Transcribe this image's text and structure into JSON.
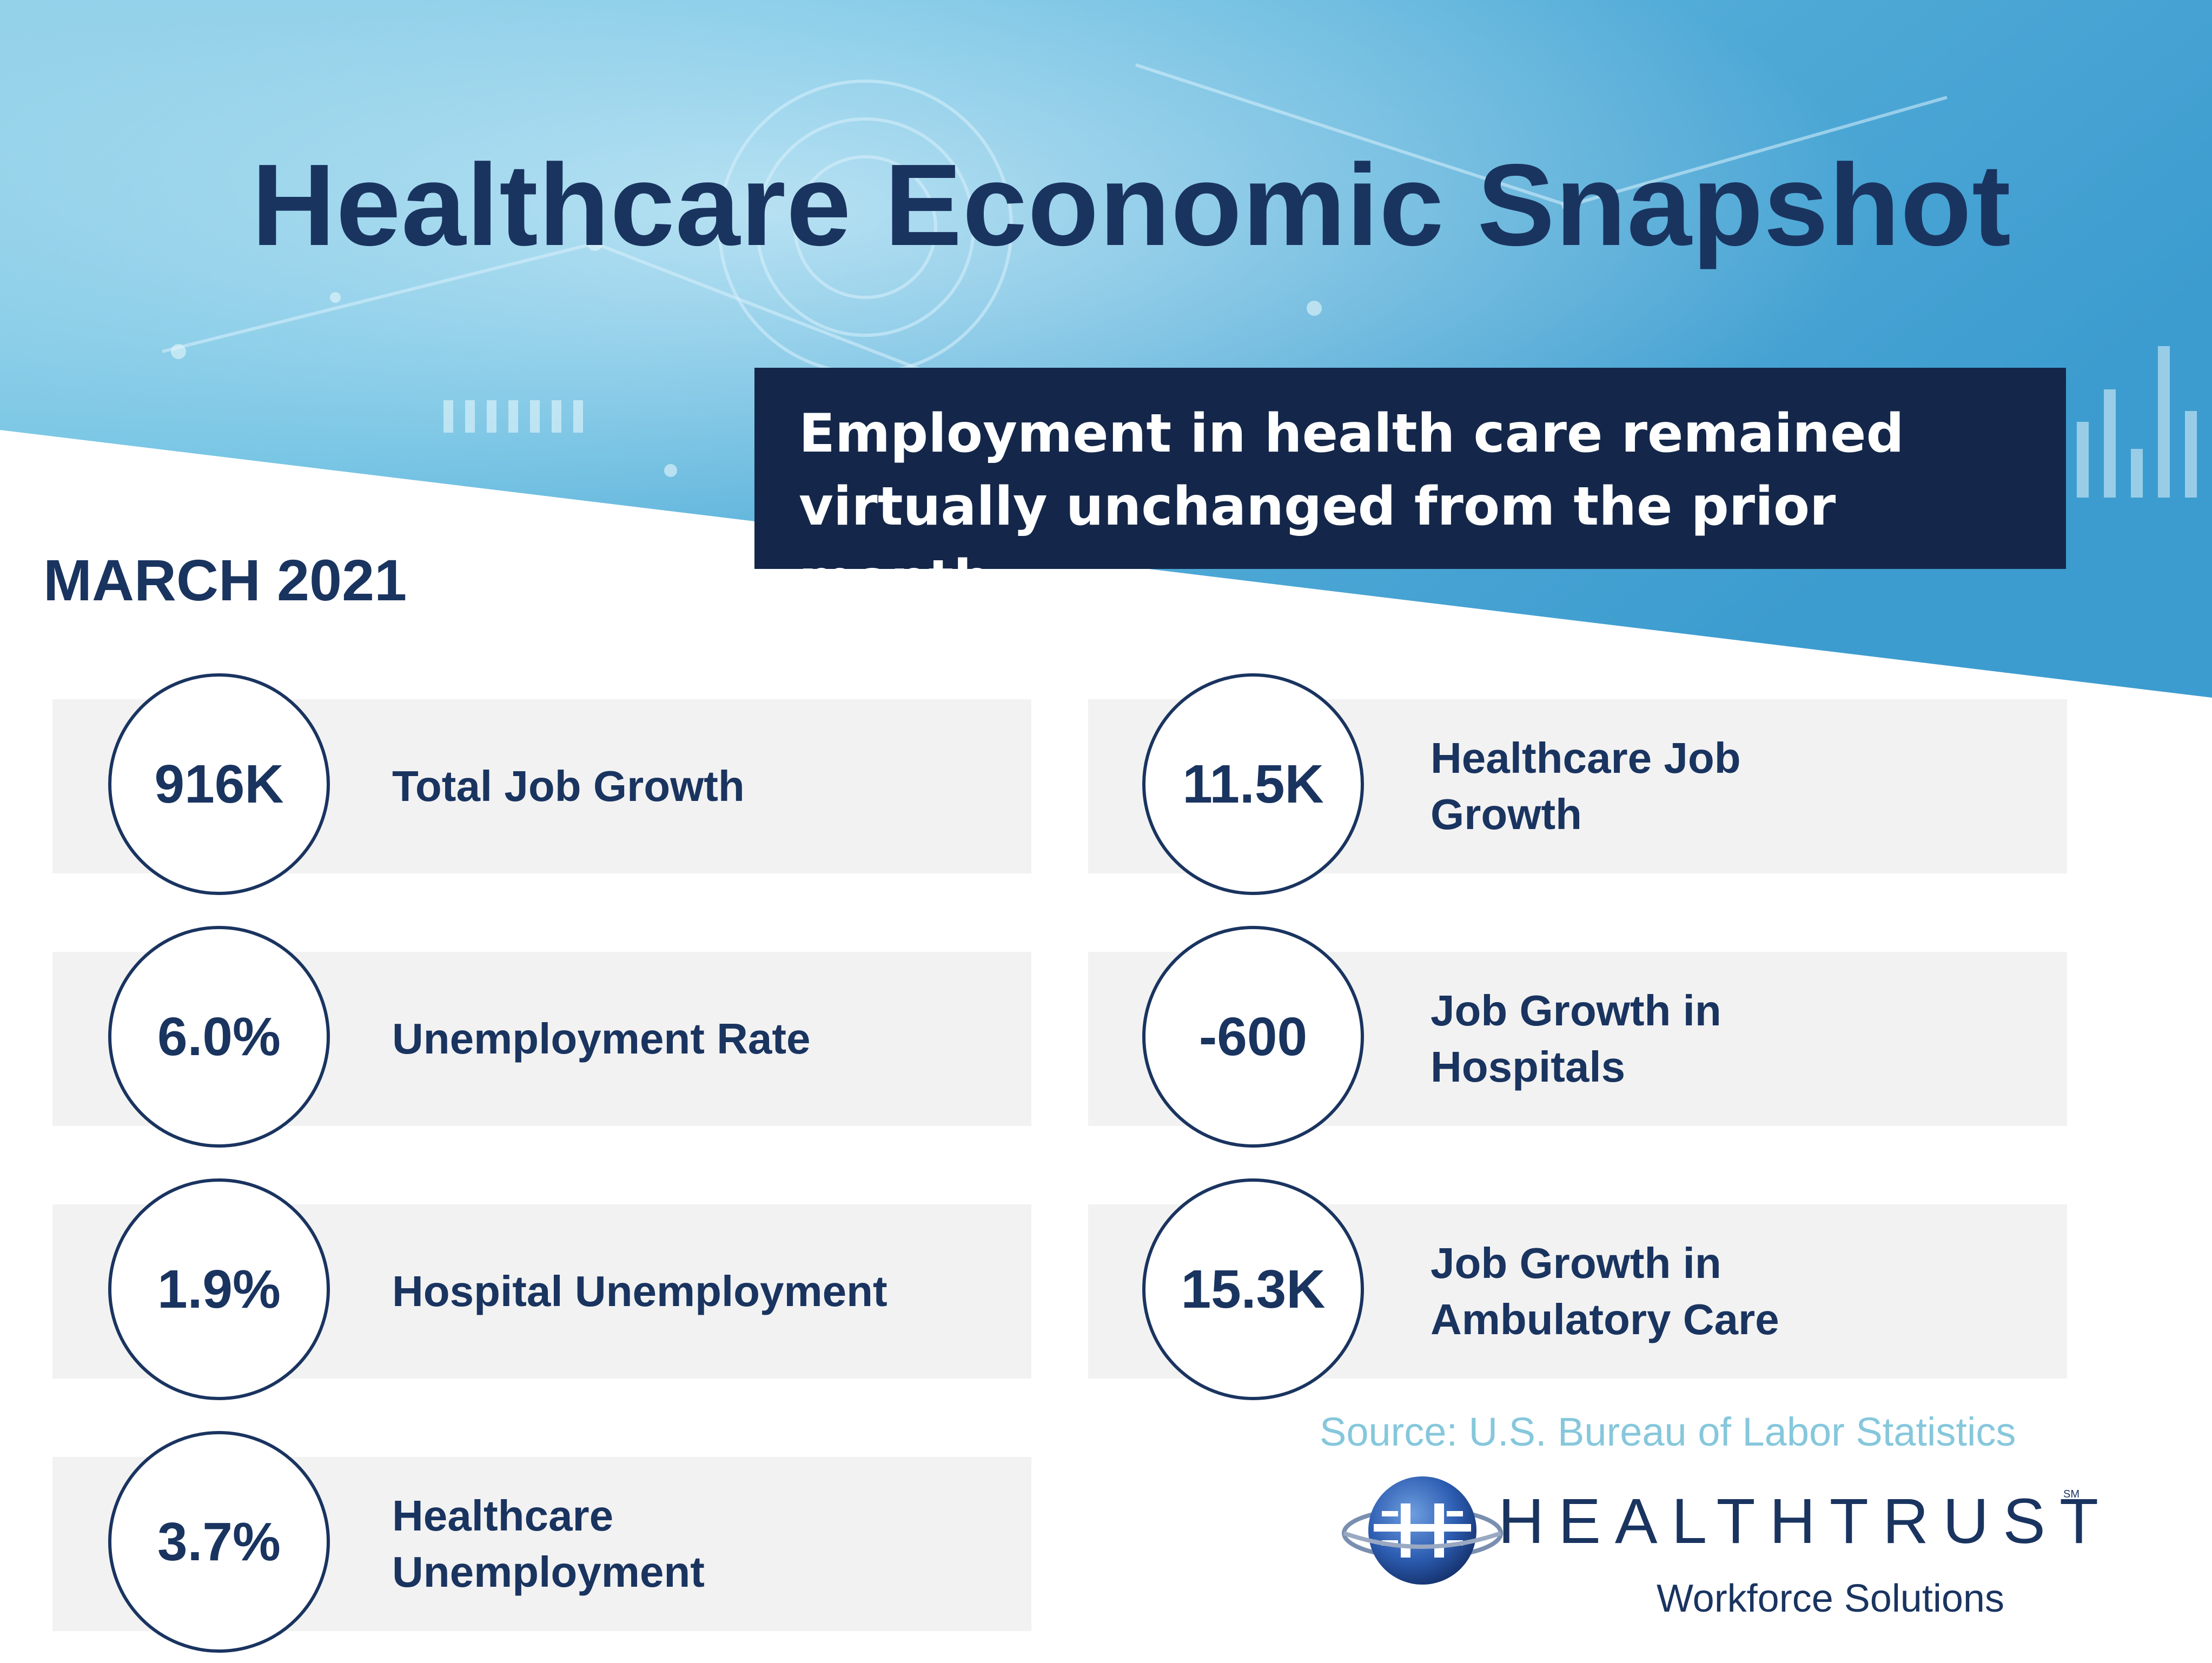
{
  "header": {
    "title": "Healthcare Economic Snapshot",
    "callout": "Employment in health care remained virtually unchanged from the prior month."
  },
  "date_label": "MARCH 2021",
  "stats": [
    {
      "value": "916K",
      "label": "Total Job Growth"
    },
    {
      "value": "6.0%",
      "label": "Unemployment Rate"
    },
    {
      "value": "1.9%",
      "label": "Hospital Unemployment"
    },
    {
      "value": "3.7%",
      "label": "Healthcare Unemployment"
    },
    {
      "value": "11.5K",
      "label": "Healthcare Job Growth"
    },
    {
      "value": "-600",
      "label": "Job Growth in Hospitals"
    },
    {
      "value": "15.3K",
      "label": "Job Growth in Ambulatory Care"
    }
  ],
  "footer": {
    "source": "Source: U.S. Bureau of Labor Statistics",
    "logo_name": "HEALTHTRUST",
    "logo_mark": "SM",
    "logo_subtitle": "Workforce Solutions"
  },
  "colors": {
    "navy": "#1a3460",
    "callout_bg": "#14274a",
    "card_bg": "#f2f2f2",
    "sky_blue": "#5bb6dc",
    "source_text": "#86c7dc"
  },
  "icons": [
    "healthtrust-globe-icon"
  ]
}
